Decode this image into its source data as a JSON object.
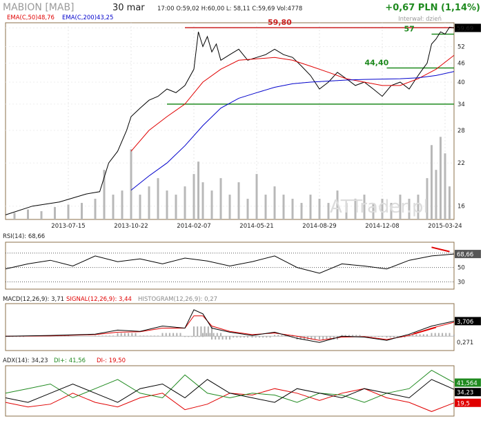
{
  "header": {
    "ticker": "MABION [MAB]",
    "date": "30 mar",
    "quote": "17:00  O:59,02  H:60,00  L: 58,11  C:59,69  Vol:4778",
    "change": "+0,67 PLN (1,14%)",
    "interval": "Interwał: dzień",
    "watermark": "ATTrader.pl"
  },
  "colors": {
    "price": "#000000",
    "ema50": "#e00000",
    "ema200": "#0000cc",
    "support": "#1f8a1f",
    "resistance": "#cc2222",
    "volume": "#b8b8b8",
    "panel_border": "#8b6f4a",
    "rsi": "#000000",
    "macd": "#000000",
    "signal": "#e00000",
    "histogram": "#b0b0b0",
    "adx": "#000000",
    "di_plus": "#1f8a1f",
    "di_minus": "#e00000"
  },
  "chart_data": [
    {
      "type": "line",
      "panel": "price",
      "legend": [
        {
          "text": "EMA(C,50)48,76",
          "color": "#e00000"
        },
        {
          "text": "EMA(C,200)43,25",
          "color": "#0000cc"
        }
      ],
      "scale": "log",
      "ylim": [
        14.5,
        62
      ],
      "y_ticks": [
        "16",
        "22",
        "28",
        "34",
        "40",
        "46",
        "52",
        "59,69"
      ],
      "x_tick_labels": [
        "2013-07-15",
        "2013-10-22",
        "2014-02-07",
        "2014-05-21",
        "2014-08-29",
        "2014-12-08",
        "2015-03-24"
      ],
      "x_range": [
        0,
        100
      ],
      "x_ticks": [
        14,
        28,
        42,
        56,
        70,
        84,
        98
      ],
      "series": [
        {
          "role": "close",
          "x": [
            0,
            6,
            12,
            18,
            21,
            23,
            25,
            27,
            28,
            30,
            32,
            34,
            36,
            38,
            40,
            42,
            43,
            44,
            45,
            46,
            47,
            48,
            50,
            52,
            54,
            56,
            58,
            60,
            62,
            64,
            66,
            68,
            70,
            72,
            74,
            76,
            78,
            80,
            82,
            84,
            86,
            88,
            90,
            92,
            93,
            94,
            95,
            96,
            97,
            98,
            99,
            100
          ],
          "values": [
            15,
            16,
            16.5,
            17.5,
            17.8,
            22,
            24,
            28,
            31,
            33,
            35,
            36,
            38,
            37,
            39,
            44,
            58,
            52,
            56,
            50,
            53,
            47,
            49,
            51,
            47,
            48,
            49,
            51,
            49,
            48,
            45,
            42,
            38,
            40,
            43,
            41,
            39,
            40,
            38,
            36,
            39,
            40,
            38,
            42,
            44,
            46,
            53,
            55,
            58,
            57,
            60,
            59.69
          ]
        },
        {
          "role": "ema50",
          "x": [
            28,
            32,
            36,
            40,
            44,
            48,
            52,
            56,
            60,
            64,
            68,
            72,
            76,
            80,
            84,
            88,
            92,
            96,
            100
          ],
          "values": [
            24,
            28,
            31,
            34,
            40,
            44,
            47,
            47.5,
            48,
            47,
            45,
            43,
            41,
            40,
            39,
            39,
            41,
            44,
            48.76
          ]
        },
        {
          "role": "ema200",
          "x": [
            28,
            32,
            36,
            40,
            44,
            48,
            52,
            56,
            60,
            64,
            68,
            72,
            76,
            80,
            84,
            88,
            92,
            96,
            100
          ],
          "values": [
            18,
            20,
            22,
            25,
            29,
            33,
            35.5,
            37,
            38.5,
            39.5,
            40,
            40.3,
            40.6,
            40.8,
            40.9,
            41,
            41.3,
            42,
            43.25
          ]
        }
      ],
      "volume": {
        "x": [
          2,
          5,
          8,
          11,
          14,
          17,
          20,
          22,
          24,
          26,
          28,
          30,
          32,
          34,
          36,
          38,
          40,
          42,
          43,
          44,
          46,
          48,
          50,
          52,
          54,
          56,
          58,
          60,
          62,
          64,
          66,
          68,
          70,
          72,
          74,
          76,
          78,
          80,
          82,
          84,
          86,
          88,
          90,
          92,
          94,
          95,
          96,
          97,
          98,
          99
        ],
        "values": [
          0.08,
          0.12,
          0.1,
          0.15,
          0.18,
          0.2,
          0.25,
          0.6,
          0.3,
          0.35,
          0.85,
          0.3,
          0.4,
          0.5,
          0.35,
          0.3,
          0.4,
          0.55,
          0.7,
          0.45,
          0.35,
          0.5,
          0.3,
          0.45,
          0.25,
          0.55,
          0.3,
          0.4,
          0.3,
          0.25,
          0.2,
          0.3,
          0.25,
          0.2,
          0.35,
          0.2,
          0.25,
          0.3,
          0.2,
          0.25,
          0.2,
          0.3,
          0.25,
          0.3,
          0.5,
          0.9,
          0.6,
          1.0,
          0.8,
          0.4
        ]
      },
      "annotations": [
        {
          "label": "59,80",
          "value": 59.8,
          "color": "#cc2222",
          "from_x": 40
        },
        {
          "label": "57",
          "value": 57,
          "color": "#1f8a1f",
          "from_x": 95
        },
        {
          "label": "44,40",
          "value": 44.4,
          "color": "#1f8a1f",
          "from_x": 85
        },
        {
          "label": "",
          "value": 34,
          "color": "#1f8a1f",
          "from_x": 36
        }
      ]
    },
    {
      "type": "line",
      "panel": "rsi",
      "label": "RSI(14): 68,66",
      "ylim": [
        20,
        85
      ],
      "y_ticks": [
        "30",
        "50"
      ],
      "last_value": "68,66",
      "x": [
        0,
        5,
        10,
        15,
        20,
        25,
        30,
        35,
        40,
        45,
        50,
        55,
        60,
        65,
        70,
        75,
        80,
        85,
        90,
        95,
        100
      ],
      "values": [
        48,
        55,
        60,
        52,
        66,
        58,
        62,
        55,
        63,
        59,
        52,
        58,
        66,
        50,
        42,
        55,
        52,
        48,
        60,
        66,
        68.66
      ],
      "trendline": {
        "x": [
          95,
          99
        ],
        "values": [
          78,
          72
        ]
      }
    },
    {
      "type": "line",
      "panel": "macd",
      "label_macd": "MACD(12,26,9): 3,71",
      "label_signal": "SIGNAL(12,26,9): 3,44",
      "label_hist": "HISTOGRAM(12,26,9): 0,27",
      "ylim": [
        -3.5,
        8
      ],
      "last_macd": "3,706",
      "last_hist": "0,271",
      "x": [
        0,
        10,
        20,
        25,
        30,
        35,
        40,
        42,
        44,
        46,
        50,
        55,
        60,
        65,
        70,
        75,
        80,
        85,
        90,
        95,
        100
      ],
      "macd": [
        0,
        0.2,
        0.5,
        1.5,
        1.2,
        2.5,
        2.0,
        6.5,
        5.5,
        2.0,
        1.0,
        0.2,
        1.0,
        -0.5,
        -1.5,
        0.0,
        -0.2,
        -1.0,
        0.5,
        2.5,
        3.71
      ],
      "signal": [
        0,
        0.1,
        0.4,
        1.0,
        1.1,
        2.0,
        2.0,
        5.0,
        5.0,
        2.5,
        1.2,
        0.4,
        0.8,
        0.0,
        -1.0,
        -0.2,
        -0.1,
        -0.8,
        0.2,
        2.0,
        3.44
      ],
      "trendline": {
        "x": [
          91,
          96
        ],
        "values": [
          0.6,
          2.2
        ]
      }
    },
    {
      "type": "line",
      "panel": "adx",
      "label_adx": "ADX(14): 34,23",
      "label_diplus": "DI+: 41,56",
      "label_diminus": "DI-: 19,50",
      "ylim": [
        5,
        60
      ],
      "last_adx": "34,23",
      "last_diplus": "41,564",
      "last_diminus": "19,5",
      "x": [
        0,
        5,
        10,
        15,
        20,
        25,
        30,
        35,
        40,
        45,
        50,
        55,
        60,
        65,
        70,
        75,
        80,
        85,
        90,
        95,
        100
      ],
      "adx": [
        25,
        20,
        30,
        40,
        30,
        20,
        35,
        40,
        25,
        45,
        30,
        25,
        20,
        35,
        30,
        25,
        35,
        30,
        25,
        45,
        34.23
      ],
      "di_plus": [
        30,
        35,
        40,
        25,
        35,
        45,
        30,
        25,
        50,
        30,
        25,
        30,
        28,
        20,
        30,
        28,
        20,
        30,
        35,
        55,
        41.56
      ],
      "di_minus": [
        20,
        15,
        18,
        30,
        20,
        15,
        25,
        30,
        12,
        18,
        30,
        28,
        35,
        30,
        22,
        30,
        35,
        25,
        20,
        10,
        19.5
      ]
    }
  ]
}
